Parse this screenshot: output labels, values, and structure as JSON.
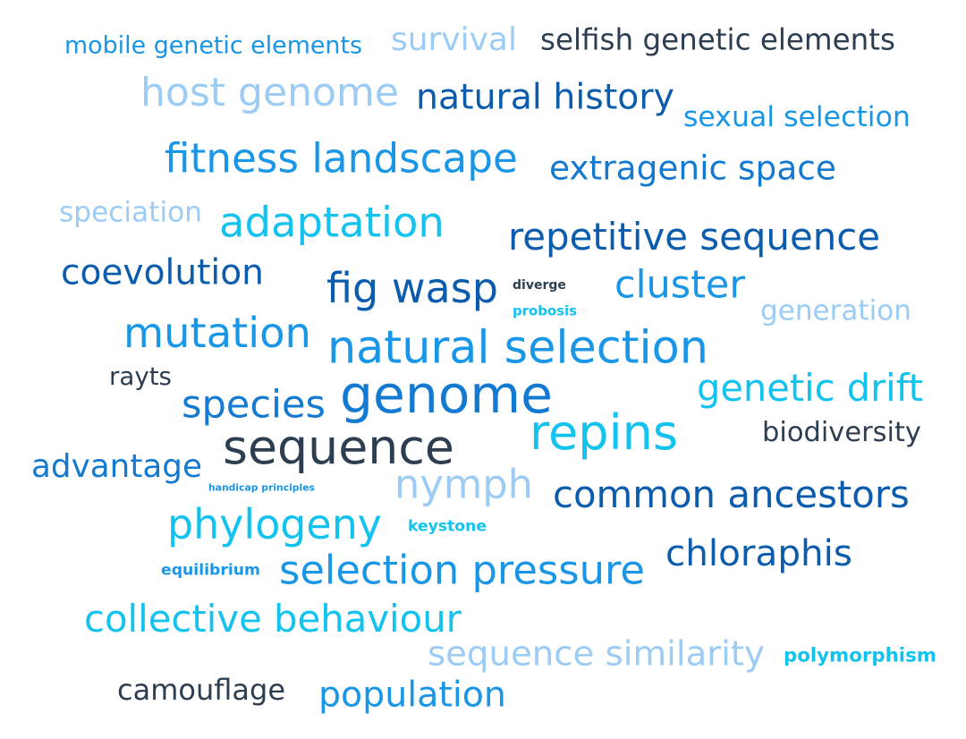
{
  "colors": {
    "dark_slate": "#2c3e50",
    "navy_blue": "#0b5cad",
    "mid_blue": "#1479d0",
    "bright_blue": "#1a96e6",
    "cyan": "#14c2ee",
    "light_blue": "#9ccbf4"
  },
  "words": [
    {
      "text": "mobile genetic elements",
      "color": "#1a96e6"
    },
    {
      "text": "survival",
      "color": "#9ccbf4"
    },
    {
      "text": "selfish genetic elements",
      "color": "#2c3e50"
    },
    {
      "text": "host genome",
      "color": "#9ccbf4"
    },
    {
      "text": "natural history",
      "color": "#0b5cad"
    },
    {
      "text": "sexual selection",
      "color": "#1a96e6"
    },
    {
      "text": "fitness landscape",
      "color": "#1a96e6"
    },
    {
      "text": "extragenic space",
      "color": "#1479d0"
    },
    {
      "text": "speciation",
      "color": "#9ccbf4"
    },
    {
      "text": "adaptation",
      "color": "#14c2ee"
    },
    {
      "text": "repetitive sequence",
      "color": "#0b5cad"
    },
    {
      "text": "coevolution",
      "color": "#0b5cad"
    },
    {
      "text": "fig wasp",
      "color": "#0b5cad"
    },
    {
      "text": "diverge",
      "color": "#2c3e50"
    },
    {
      "text": "probosis",
      "color": "#14c2ee"
    },
    {
      "text": "cluster",
      "color": "#1a96e6"
    },
    {
      "text": "generation",
      "color": "#9ccbf4"
    },
    {
      "text": "mutation",
      "color": "#1a96e6"
    },
    {
      "text": "natural selection",
      "color": "#1a96e6"
    },
    {
      "text": "rayts",
      "color": "#2c3e50"
    },
    {
      "text": "genetic drift",
      "color": "#14c2ee"
    },
    {
      "text": "species",
      "color": "#1479d0"
    },
    {
      "text": "genome",
      "color": "#1479d0"
    },
    {
      "text": "repins",
      "color": "#14c2ee"
    },
    {
      "text": "biodiversity",
      "color": "#2c3e50"
    },
    {
      "text": "sequence",
      "color": "#2c3e50"
    },
    {
      "text": "advantage",
      "color": "#1479d0"
    },
    {
      "text": "handicap principles",
      "color": "#1a96e6"
    },
    {
      "text": "nymph",
      "color": "#9ccbf4"
    },
    {
      "text": "common ancestors",
      "color": "#0b5cad"
    },
    {
      "text": "phylogeny",
      "color": "#14c2ee"
    },
    {
      "text": "keystone",
      "color": "#14c2ee"
    },
    {
      "text": "chloraphis",
      "color": "#0b5cad"
    },
    {
      "text": "equilibrium",
      "color": "#1a96e6"
    },
    {
      "text": "selection pressure",
      "color": "#1a96e6"
    },
    {
      "text": "collective behaviour",
      "color": "#14c2ee"
    },
    {
      "text": "sequence similarity",
      "color": "#9ccbf4"
    },
    {
      "text": "polymorphism",
      "color": "#14c2ee"
    },
    {
      "text": "camouflage",
      "color": "#2c3e50"
    },
    {
      "text": "population",
      "color": "#1a96e6"
    }
  ]
}
